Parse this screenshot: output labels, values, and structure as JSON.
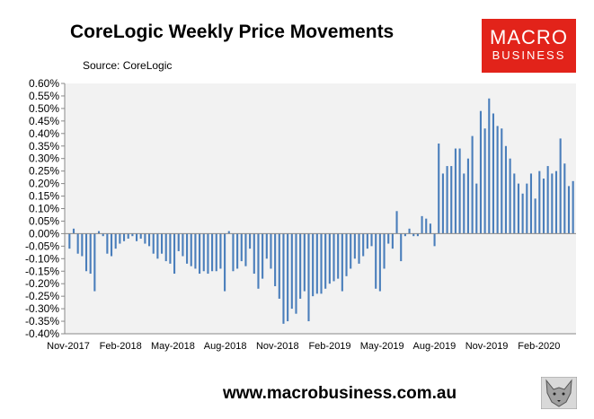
{
  "header": {
    "title": "CoreLogic Weekly Price Movements",
    "source": "Source: CoreLogic"
  },
  "logo": {
    "line1": "MACRO",
    "line2": "BUSINESS"
  },
  "footer": {
    "url": "www.macrobusiness.com.au"
  },
  "chart_data": {
    "type": "bar",
    "title": "CoreLogic Weekly Price Movements",
    "xlabel": "",
    "ylabel": "",
    "ylim": [
      -0.4,
      0.6
    ],
    "y_ticks": [
      "0.60%",
      "0.55%",
      "0.50%",
      "0.45%",
      "0.40%",
      "0.35%",
      "0.30%",
      "0.25%",
      "0.20%",
      "0.15%",
      "0.10%",
      "0.05%",
      "0.00%",
      "-0.05%",
      "-0.10%",
      "-0.15%",
      "-0.20%",
      "-0.25%",
      "-0.30%",
      "-0.35%",
      "-0.40%"
    ],
    "x_ticks": [
      "Nov-2017",
      "Feb-2018",
      "May-2018",
      "Aug-2018",
      "Nov-2018",
      "Feb-2019",
      "May-2019",
      "Aug-2019",
      "Nov-2019",
      "Feb-2020"
    ],
    "grid": false,
    "plot_background": "#f2f2f2",
    "bar_color": "#4a7ebb",
    "series": [
      {
        "values": [
          -0.06,
          0.02,
          -0.08,
          -0.09,
          -0.15,
          -0.16,
          -0.23,
          0.01,
          -0.01,
          -0.08,
          -0.09,
          -0.06,
          -0.04,
          -0.03,
          -0.02,
          -0.01,
          -0.03,
          -0.02,
          -0.04,
          -0.05,
          -0.08,
          -0.1,
          -0.08,
          -0.11,
          -0.12,
          -0.16,
          -0.07,
          -0.09,
          -0.12,
          -0.13,
          -0.14,
          -0.16,
          -0.15,
          -0.16,
          -0.15,
          -0.15,
          -0.14,
          -0.23,
          0.01,
          -0.15,
          -0.14,
          -0.11,
          -0.13,
          -0.06,
          -0.16,
          -0.22,
          -0.18,
          -0.1,
          -0.14,
          -0.21,
          -0.26,
          -0.36,
          -0.35,
          -0.3,
          -0.32,
          -0.26,
          -0.23,
          -0.35,
          -0.25,
          -0.24,
          -0.24,
          -0.22,
          -0.2,
          -0.19,
          -0.18,
          -0.23,
          -0.17,
          -0.14,
          -0.1,
          -0.12,
          -0.09,
          -0.06,
          -0.05,
          -0.22,
          -0.23,
          -0.14,
          -0.04,
          -0.06,
          0.09,
          -0.11,
          -0.01,
          0.02,
          -0.01,
          -0.01,
          0.07,
          0.06,
          0.04,
          -0.05,
          0.36,
          0.24,
          0.27,
          0.27,
          0.34,
          0.34,
          0.24,
          0.3,
          0.39,
          0.2,
          0.49,
          0.42,
          0.54,
          0.48,
          0.43,
          0.42,
          0.35,
          0.3,
          0.24,
          0.2,
          0.16,
          0.2,
          0.24,
          0.14,
          0.25,
          0.22,
          0.27,
          0.24,
          0.25,
          0.38,
          0.28,
          0.19,
          0.21
        ]
      }
    ]
  }
}
